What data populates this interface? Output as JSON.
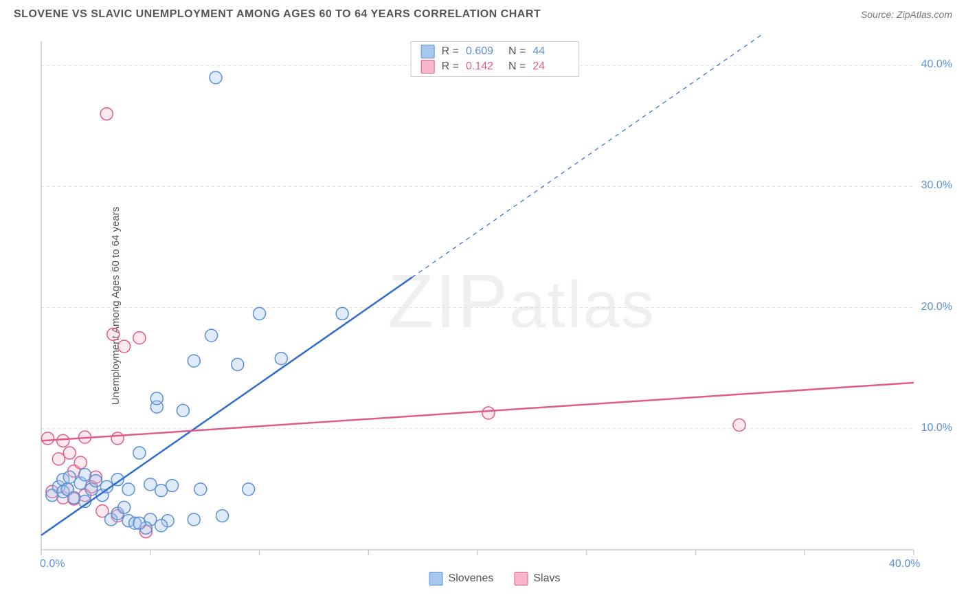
{
  "header": {
    "title": "SLOVENE VS SLAVIC UNEMPLOYMENT AMONG AGES 60 TO 64 YEARS CORRELATION CHART",
    "source": "Source: ZipAtlas.com"
  },
  "chart": {
    "type": "scatter",
    "y_axis_label": "Unemployment Among Ages 60 to 64 years",
    "watermark": "ZIPatlas",
    "xlim": [
      0,
      40
    ],
    "ylim": [
      0,
      42
    ],
    "x_ticks": [
      0,
      5,
      10,
      15,
      20,
      25,
      30,
      35,
      40
    ],
    "x_tick_labels_shown": {
      "0": "0.0%",
      "40": "40.0%"
    },
    "y_ticks": [
      10,
      20,
      30,
      40
    ],
    "y_tick_labels": {
      "10": "10.0%",
      "20": "20.0%",
      "30": "30.0%",
      "40": "40.0%"
    },
    "background_color": "#ffffff",
    "grid_color": "#dddddd",
    "axis_color": "#cccccc",
    "tick_label_color": "#5b8fd6",
    "marker_radius": 9,
    "marker_stroke_width": 1.5,
    "marker_fill_opacity_blue": 0.35,
    "marker_fill_opacity_pink": 0.3,
    "series": {
      "slovenes": {
        "label": "Slovenes",
        "color_fill": "#a7c7ef",
        "color_stroke": "#5b8fd6",
        "regression": {
          "x1": 0,
          "y1": 1.2,
          "x2": 17,
          "y2": 22.5,
          "dash_x2": 33,
          "dash_y2": 42.5,
          "color": "#2f6bd0",
          "width": 2.5
        },
        "R": "0.609",
        "N": "44",
        "points": [
          [
            0.5,
            4.5
          ],
          [
            0.8,
            5.2
          ],
          [
            1.0,
            4.8
          ],
          [
            1.0,
            5.8
          ],
          [
            1.2,
            5.0
          ],
          [
            1.3,
            6.0
          ],
          [
            1.5,
            4.3
          ],
          [
            1.8,
            5.5
          ],
          [
            2.0,
            6.2
          ],
          [
            2.0,
            4.0
          ],
          [
            2.3,
            5.0
          ],
          [
            2.5,
            5.7
          ],
          [
            2.8,
            4.5
          ],
          [
            3.0,
            5.2
          ],
          [
            3.2,
            2.5
          ],
          [
            3.5,
            3.0
          ],
          [
            3.5,
            5.8
          ],
          [
            4.0,
            2.4
          ],
          [
            4.0,
            5.0
          ],
          [
            4.3,
            2.2
          ],
          [
            4.5,
            8.0
          ],
          [
            5.0,
            2.5
          ],
          [
            5.0,
            5.4
          ],
          [
            5.3,
            11.8
          ],
          [
            5.3,
            12.5
          ],
          [
            5.5,
            4.9
          ],
          [
            5.8,
            2.4
          ],
          [
            6.0,
            5.3
          ],
          [
            6.5,
            11.5
          ],
          [
            7.0,
            2.5
          ],
          [
            7.0,
            15.6
          ],
          [
            7.3,
            5.0
          ],
          [
            7.8,
            17.7
          ],
          [
            8.0,
            39.0
          ],
          [
            8.3,
            2.8
          ],
          [
            9.0,
            15.3
          ],
          [
            9.5,
            5.0
          ],
          [
            10.0,
            19.5
          ],
          [
            11.0,
            15.8
          ],
          [
            13.8,
            19.5
          ],
          [
            3.8,
            3.5
          ],
          [
            4.8,
            1.8
          ],
          [
            5.5,
            2.0
          ],
          [
            4.5,
            2.2
          ]
        ]
      },
      "slavs": {
        "label": "Slavs",
        "color_fill": "#f5b7cd",
        "color_stroke": "#e15b8a",
        "regression": {
          "x1": 0,
          "y1": 9.0,
          "x2": 40,
          "y2": 13.8,
          "color": "#e15b8a",
          "width": 2.5
        },
        "R": "0.142",
        "N": "24",
        "points": [
          [
            0.3,
            9.2
          ],
          [
            0.5,
            4.8
          ],
          [
            0.8,
            7.5
          ],
          [
            1.0,
            4.3
          ],
          [
            1.0,
            9.0
          ],
          [
            1.2,
            5.0
          ],
          [
            1.3,
            8.0
          ],
          [
            1.5,
            6.5
          ],
          [
            1.5,
            4.2
          ],
          [
            1.8,
            7.2
          ],
          [
            2.0,
            9.3
          ],
          [
            2.0,
            4.5
          ],
          [
            2.3,
            5.2
          ],
          [
            2.5,
            6.0
          ],
          [
            2.8,
            3.2
          ],
          [
            3.0,
            36.0
          ],
          [
            3.3,
            17.8
          ],
          [
            3.5,
            2.8
          ],
          [
            3.5,
            9.2
          ],
          [
            3.8,
            16.8
          ],
          [
            4.5,
            17.5
          ],
          [
            4.8,
            1.5
          ],
          [
            20.5,
            11.3
          ],
          [
            32.0,
            10.3
          ]
        ]
      }
    },
    "stats_labels": {
      "R": "R =",
      "N": "N ="
    },
    "bottom_legend_labels": {
      "slovenes": "Slovenes",
      "slavs": "Slavs"
    }
  }
}
